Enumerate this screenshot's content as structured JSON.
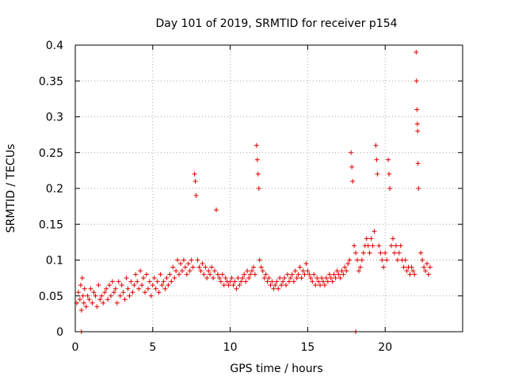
{
  "chart_data": {
    "type": "scatter",
    "title": "Day 101 of 2019, SRMTID for receiver p154",
    "xlabel": "GPS time / hours",
    "ylabel": "SRMTID / TECUs",
    "xlim": [
      0,
      25
    ],
    "ylim": [
      0,
      0.4
    ],
    "xticks": [
      0,
      5,
      10,
      15,
      20
    ],
    "xtick_labels": [
      "0",
      "5",
      "10",
      "15",
      "20"
    ],
    "yticks": [
      0,
      0.05,
      0.1,
      0.15,
      0.2,
      0.25,
      0.3,
      0.35,
      0.4
    ],
    "ytick_labels": [
      "0",
      "0.05",
      "0.1",
      "0.15",
      "0.2",
      "0.25",
      "0.3",
      "0.35",
      "0.4"
    ],
    "grid": true,
    "marker": "plus",
    "marker_color": "#e00000",
    "series": [
      {
        "name": "SRMTID",
        "points": [
          [
            0.1,
            0.04
          ],
          [
            0.2,
            0.055
          ],
          [
            0.3,
            0.045
          ],
          [
            0.35,
            0.065
          ],
          [
            0.4,
            0.03
          ],
          [
            0.45,
            0.075
          ],
          [
            0.5,
            0.05
          ],
          [
            0.55,
            0.04
          ],
          [
            0.6,
            0.06
          ],
          [
            0.7,
            0.035
          ],
          [
            0.8,
            0.05
          ],
          [
            0.9,
            0.045
          ],
          [
            1.0,
            0.06
          ],
          [
            1.1,
            0.04
          ],
          [
            1.2,
            0.055
          ],
          [
            1.3,
            0.05
          ],
          [
            1.4,
            0.035
          ],
          [
            1.5,
            0.065
          ],
          [
            1.6,
            0.045
          ],
          [
            1.7,
            0.05
          ],
          [
            1.8,
            0.04
          ],
          [
            1.9,
            0.055
          ],
          [
            2.0,
            0.06
          ],
          [
            2.1,
            0.045
          ],
          [
            2.2,
            0.065
          ],
          [
            2.3,
            0.05
          ],
          [
            2.4,
            0.07
          ],
          [
            2.5,
            0.055
          ],
          [
            2.6,
            0.06
          ],
          [
            2.7,
            0.04
          ],
          [
            2.8,
            0.07
          ],
          [
            2.9,
            0.05
          ],
          [
            3.0,
            0.065
          ],
          [
            3.1,
            0.055
          ],
          [
            3.2,
            0.045
          ],
          [
            3.3,
            0.075
          ],
          [
            3.4,
            0.06
          ],
          [
            3.5,
            0.05
          ],
          [
            3.6,
            0.07
          ],
          [
            3.7,
            0.055
          ],
          [
            3.8,
            0.065
          ],
          [
            3.9,
            0.08
          ],
          [
            4.0,
            0.07
          ],
          [
            4.1,
            0.06
          ],
          [
            4.2,
            0.085
          ],
          [
            4.3,
            0.065
          ],
          [
            4.4,
            0.075
          ],
          [
            4.5,
            0.055
          ],
          [
            4.6,
            0.08
          ],
          [
            4.7,
            0.06
          ],
          [
            4.8,
            0.07
          ],
          [
            4.9,
            0.05
          ],
          [
            5.0,
            0.065
          ],
          [
            5.1,
            0.075
          ],
          [
            5.2,
            0.06
          ],
          [
            5.3,
            0.07
          ],
          [
            5.4,
            0.055
          ],
          [
            5.5,
            0.08
          ],
          [
            5.6,
            0.065
          ],
          [
            5.7,
            0.07
          ],
          [
            5.8,
            0.06
          ],
          [
            5.9,
            0.075
          ],
          [
            6.0,
            0.065
          ],
          [
            6.1,
            0.08
          ],
          [
            6.2,
            0.07
          ],
          [
            6.3,
            0.09
          ],
          [
            6.4,
            0.075
          ],
          [
            6.5,
            0.085
          ],
          [
            6.6,
            0.1
          ],
          [
            6.7,
            0.08
          ],
          [
            6.8,
            0.095
          ],
          [
            6.9,
            0.085
          ],
          [
            7.0,
            0.1
          ],
          [
            7.1,
            0.09
          ],
          [
            7.2,
            0.08
          ],
          [
            7.3,
            0.095
          ],
          [
            7.4,
            0.085
          ],
          [
            7.5,
            0.1
          ],
          [
            7.6,
            0.09
          ],
          [
            7.7,
            0.22
          ],
          [
            7.75,
            0.21
          ],
          [
            7.8,
            0.19
          ],
          [
            7.9,
            0.1
          ],
          [
            8.0,
            0.09
          ],
          [
            8.1,
            0.085
          ],
          [
            8.2,
            0.095
          ],
          [
            8.3,
            0.08
          ],
          [
            8.4,
            0.09
          ],
          [
            8.5,
            0.075
          ],
          [
            8.6,
            0.085
          ],
          [
            8.7,
            0.08
          ],
          [
            8.8,
            0.09
          ],
          [
            8.9,
            0.075
          ],
          [
            9.0,
            0.085
          ],
          [
            9.1,
            0.17
          ],
          [
            9.2,
            0.08
          ],
          [
            9.3,
            0.075
          ],
          [
            9.4,
            0.07
          ],
          [
            9.5,
            0.08
          ],
          [
            9.6,
            0.065
          ],
          [
            9.7,
            0.075
          ],
          [
            9.8,
            0.07
          ],
          [
            9.9,
            0.065
          ],
          [
            10.0,
            0.07
          ],
          [
            10.1,
            0.075
          ],
          [
            10.2,
            0.065
          ],
          [
            10.3,
            0.07
          ],
          [
            10.4,
            0.06
          ],
          [
            10.5,
            0.075
          ],
          [
            10.6,
            0.065
          ],
          [
            10.7,
            0.07
          ],
          [
            10.8,
            0.075
          ],
          [
            10.9,
            0.08
          ],
          [
            11.0,
            0.07
          ],
          [
            11.1,
            0.085
          ],
          [
            11.2,
            0.075
          ],
          [
            11.3,
            0.08
          ],
          [
            11.4,
            0.085
          ],
          [
            11.5,
            0.09
          ],
          [
            11.6,
            0.08
          ],
          [
            11.7,
            0.26
          ],
          [
            11.75,
            0.24
          ],
          [
            11.8,
            0.22
          ],
          [
            11.85,
            0.2
          ],
          [
            11.9,
            0.1
          ],
          [
            12.0,
            0.09
          ],
          [
            12.1,
            0.085
          ],
          [
            12.2,
            0.075
          ],
          [
            12.3,
            0.08
          ],
          [
            12.4,
            0.07
          ],
          [
            12.5,
            0.075
          ],
          [
            12.6,
            0.065
          ],
          [
            12.7,
            0.07
          ],
          [
            12.8,
            0.06
          ],
          [
            12.9,
            0.065
          ],
          [
            13.0,
            0.07
          ],
          [
            13.1,
            0.06
          ],
          [
            13.2,
            0.075
          ],
          [
            13.3,
            0.065
          ],
          [
            13.4,
            0.07
          ],
          [
            13.5,
            0.075
          ],
          [
            13.6,
            0.065
          ],
          [
            13.7,
            0.08
          ],
          [
            13.8,
            0.07
          ],
          [
            13.9,
            0.075
          ],
          [
            14.0,
            0.08
          ],
          [
            14.1,
            0.07
          ],
          [
            14.2,
            0.085
          ],
          [
            14.3,
            0.075
          ],
          [
            14.4,
            0.08
          ],
          [
            14.5,
            0.09
          ],
          [
            14.6,
            0.075
          ],
          [
            14.7,
            0.085
          ],
          [
            14.8,
            0.08
          ],
          [
            14.9,
            0.095
          ],
          [
            15.0,
            0.085
          ],
          [
            15.1,
            0.08
          ],
          [
            15.2,
            0.075
          ],
          [
            15.3,
            0.07
          ],
          [
            15.4,
            0.08
          ],
          [
            15.5,
            0.065
          ],
          [
            15.6,
            0.075
          ],
          [
            15.7,
            0.07
          ],
          [
            15.8,
            0.065
          ],
          [
            15.9,
            0.075
          ],
          [
            16.0,
            0.07
          ],
          [
            16.1,
            0.065
          ],
          [
            16.2,
            0.075
          ],
          [
            16.3,
            0.07
          ],
          [
            16.4,
            0.08
          ],
          [
            16.5,
            0.075
          ],
          [
            16.6,
            0.07
          ],
          [
            16.7,
            0.08
          ],
          [
            16.8,
            0.075
          ],
          [
            16.9,
            0.085
          ],
          [
            17.0,
            0.08
          ],
          [
            17.1,
            0.075
          ],
          [
            17.2,
            0.085
          ],
          [
            17.3,
            0.08
          ],
          [
            17.4,
            0.09
          ],
          [
            17.5,
            0.085
          ],
          [
            17.6,
            0.095
          ],
          [
            17.7,
            0.1
          ],
          [
            17.8,
            0.25
          ],
          [
            17.85,
            0.23
          ],
          [
            17.9,
            0.21
          ],
          [
            18.0,
            0.12
          ],
          [
            18.1,
            0.11
          ],
          [
            18.2,
            0.1
          ],
          [
            18.3,
            0.085
          ],
          [
            18.4,
            0.09
          ],
          [
            18.5,
            0.1
          ],
          [
            18.6,
            0.11
          ],
          [
            18.7,
            0.12
          ],
          [
            18.8,
            0.13
          ],
          [
            18.9,
            0.12
          ],
          [
            19.0,
            0.11
          ],
          [
            19.1,
            0.13
          ],
          [
            19.2,
            0.12
          ],
          [
            19.3,
            0.14
          ],
          [
            19.4,
            0.26
          ],
          [
            19.45,
            0.24
          ],
          [
            19.5,
            0.22
          ],
          [
            19.6,
            0.12
          ],
          [
            19.7,
            0.11
          ],
          [
            19.8,
            0.1
          ],
          [
            19.9,
            0.09
          ],
          [
            20.0,
            0.11
          ],
          [
            20.1,
            0.1
          ],
          [
            20.2,
            0.24
          ],
          [
            20.25,
            0.22
          ],
          [
            20.3,
            0.2
          ],
          [
            20.4,
            0.12
          ],
          [
            20.5,
            0.13
          ],
          [
            20.6,
            0.11
          ],
          [
            20.7,
            0.12
          ],
          [
            20.8,
            0.1
          ],
          [
            20.9,
            0.11
          ],
          [
            21.0,
            0.12
          ],
          [
            21.1,
            0.1
          ],
          [
            21.2,
            0.09
          ],
          [
            21.3,
            0.1
          ],
          [
            21.4,
            0.085
          ],
          [
            21.5,
            0.09
          ],
          [
            21.6,
            0.08
          ],
          [
            21.7,
            0.09
          ],
          [
            21.8,
            0.085
          ],
          [
            21.9,
            0.08
          ],
          [
            22.0,
            0.39
          ],
          [
            22.02,
            0.35
          ],
          [
            22.05,
            0.31
          ],
          [
            22.08,
            0.29
          ],
          [
            22.1,
            0.28
          ],
          [
            22.12,
            0.235
          ],
          [
            22.15,
            0.2
          ],
          [
            22.3,
            0.11
          ],
          [
            22.4,
            0.1
          ],
          [
            22.5,
            0.09
          ],
          [
            22.6,
            0.085
          ],
          [
            22.7,
            0.095
          ],
          [
            22.8,
            0.08
          ],
          [
            22.9,
            0.09
          ],
          [
            0.4,
            0.0
          ],
          [
            18.1,
            0.0
          ]
        ]
      }
    ]
  }
}
